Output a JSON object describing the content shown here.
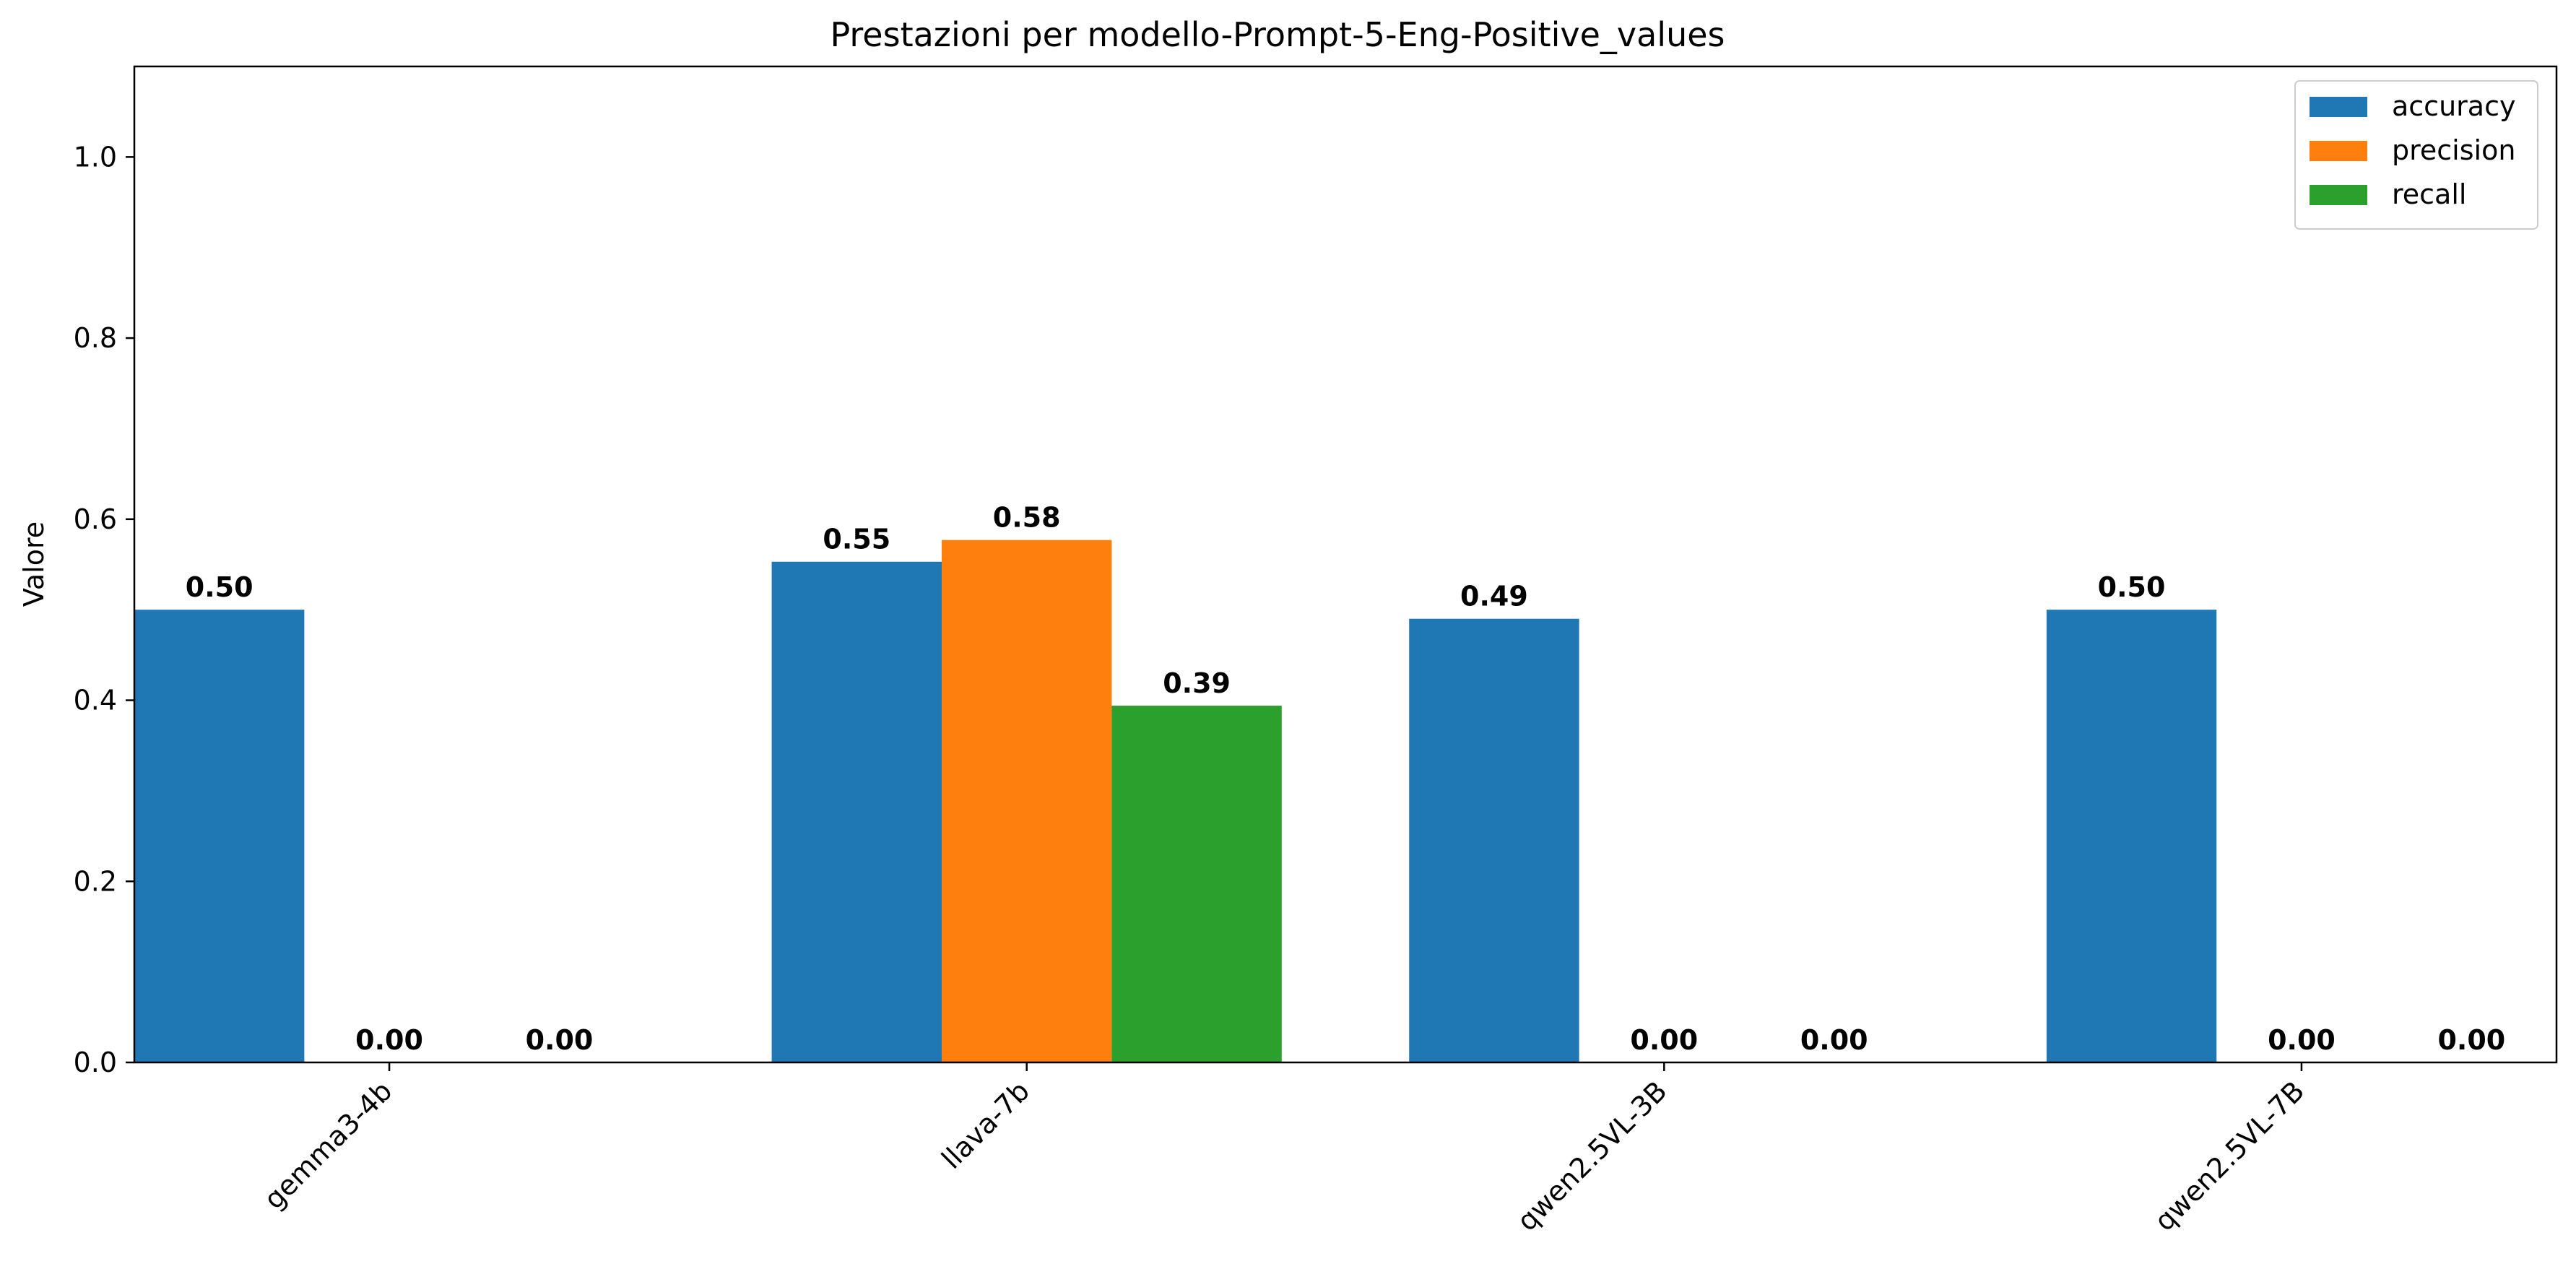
{
  "chart_data": {
    "type": "bar",
    "title": "Prestazioni per modello-Prompt-5-Eng-Positive_values",
    "xlabel": "",
    "ylabel": "Valore",
    "categories": [
      "gemma3-4b",
      "llava-7b",
      "qwen2.5VL-3B",
      "qwen2.5VL-7B"
    ],
    "series": [
      {
        "name": "accuracy",
        "color": "#1f77b4",
        "values": [
          0.5,
          0.553,
          0.49,
          0.5
        ],
        "labels": [
          "0.50",
          "0.55",
          "0.49",
          "0.50"
        ]
      },
      {
        "name": "precision",
        "color": "#ff7f0e",
        "values": [
          0.0,
          0.577,
          0.0,
          0.0
        ],
        "labels": [
          "0.00",
          "0.58",
          "0.00",
          "0.00"
        ]
      },
      {
        "name": "recall",
        "color": "#2ca02c",
        "values": [
          0.0,
          0.394,
          0.0,
          0.0
        ],
        "labels": [
          "0.00",
          "0.39",
          "0.00",
          "0.00"
        ]
      }
    ],
    "ylim": [
      0,
      1.1
    ],
    "yticks": [
      "0.0",
      "0.2",
      "0.4",
      "0.6",
      "0.8",
      "1.0"
    ],
    "grid": false,
    "legend_position": "top-right"
  }
}
